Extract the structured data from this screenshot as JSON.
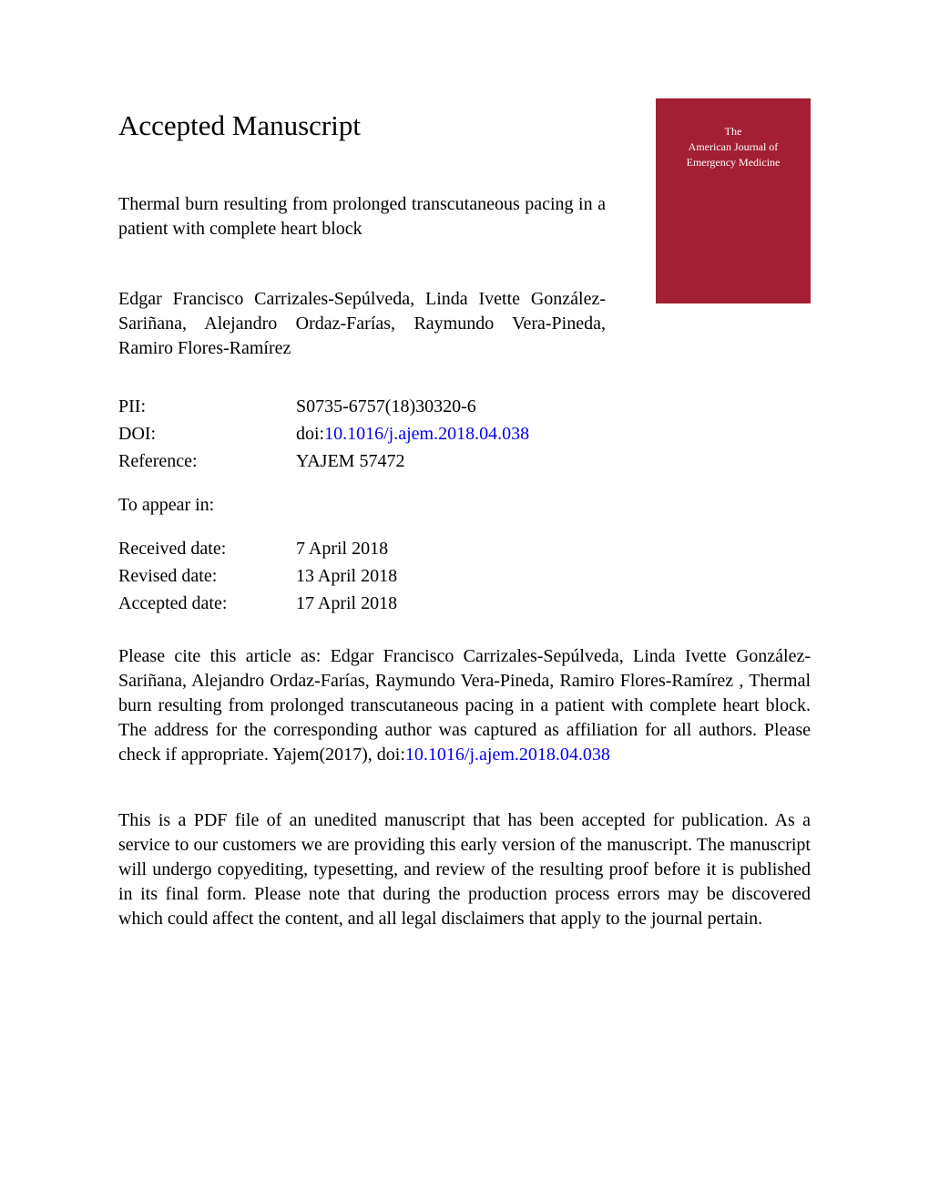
{
  "heading": "Accepted Manuscript",
  "journal_cover": {
    "line1": "The",
    "line2": "American Journal of",
    "line3": "Emergency Medicine",
    "background_color": "#a31f34",
    "text_color": "#ffffff"
  },
  "article_title": "Thermal burn resulting from prolonged transcutaneous pacing in a patient with complete heart block",
  "authors": "Edgar Francisco Carrizales-Sepúlveda, Linda Ivette González-Sariñana, Alejandro Ordaz-Farías, Raymundo Vera-Pineda, Ramiro Flores-Ramírez",
  "metadata": {
    "pii_label": "PII:",
    "pii_value": "S0735-6757(18)30320-6",
    "doi_label": "DOI:",
    "doi_prefix": "doi:",
    "doi_link": "10.1016/j.ajem.2018.04.038",
    "reference_label": "Reference:",
    "reference_value": "YAJEM 57472",
    "appear_label": "To appear in:",
    "received_label": "Received date:",
    "received_value": "7 April 2018",
    "revised_label": "Revised date:",
    "revised_value": "13 April 2018",
    "accepted_label": "Accepted date:",
    "accepted_value": "17 April 2018"
  },
  "citation_prefix": "Please cite this article as: Edgar Francisco Carrizales-Sepúlveda, Linda Ivette González-Sariñana, Alejandro Ordaz-Farías, Raymundo Vera-Pineda, Ramiro Flores-Ramírez , Thermal burn resulting from prolonged transcutaneous pacing in a patient with complete heart block. The address for the corresponding author was captured as affiliation for all authors. Please check if appropriate. Yajem(2017), doi:",
  "citation_doi": "10.1016/j.ajem.2018.04.038",
  "disclaimer": "This is a PDF file of an unedited manuscript that has been accepted for publication. As a service to our customers we are providing this early version of the manuscript. The manuscript will undergo copyediting, typesetting, and review of the resulting proof before it is published in its final form. Please note that during the production process errors may be discovered which could affect the content, and all legal disclaimers that apply to the journal pertain.",
  "colors": {
    "text": "#000000",
    "link": "#0000ee",
    "background": "#ffffff"
  },
  "typography": {
    "heading_fontsize": 31,
    "body_fontsize": 20,
    "font_family": "Times New Roman"
  }
}
